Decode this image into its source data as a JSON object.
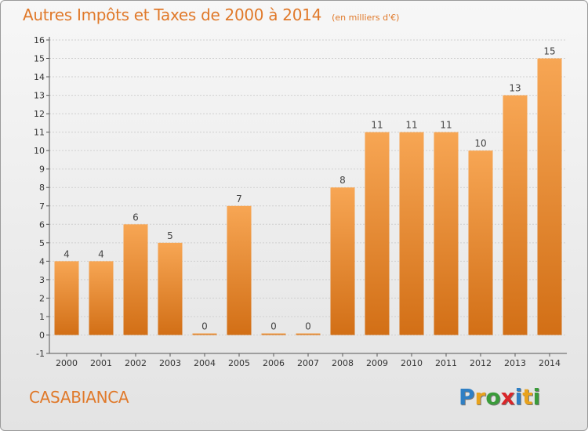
{
  "page": {
    "title": "Autres Impôts et Taxes de 2000 à 2014",
    "subtitle": "(en milliers d'€)",
    "commune": "CASABIANCA",
    "logo": {
      "text": "Proxiti",
      "letters": [
        {
          "char": "P",
          "color": "#2f7fc4"
        },
        {
          "char": "r",
          "color": "#e8a21c"
        },
        {
          "char": "o",
          "color": "#3a9b3a"
        },
        {
          "char": "x",
          "color": "#d9262a"
        },
        {
          "char": "i",
          "color": "#2f7fc4"
        },
        {
          "char": "t",
          "color": "#e8a21c"
        },
        {
          "char": "i",
          "color": "#3a9b3a"
        }
      ]
    }
  },
  "colors": {
    "bar_top": "#f7a654",
    "bar_bottom": "#d26f16",
    "title": "#e0792a",
    "grid": "#d0d0d0",
    "axis": "#555555"
  },
  "chart_data": {
    "type": "bar",
    "title": "Autres Impôts et Taxes de 2000 à 2014",
    "subtitle": "(en milliers d'€)",
    "categories": [
      "2000",
      "2001",
      "2002",
      "2003",
      "2004",
      "2005",
      "2006",
      "2007",
      "2008",
      "2009",
      "2010",
      "2011",
      "2012",
      "2013",
      "2014"
    ],
    "values": [
      4,
      4,
      6,
      5,
      0,
      7,
      0,
      0,
      8,
      11,
      11,
      11,
      10,
      13,
      15
    ],
    "data_labels": [
      "4",
      "4",
      "6",
      "5",
      "0",
      "7",
      "0",
      "0",
      "8",
      "11",
      "11",
      "11",
      "10",
      "13",
      "15"
    ],
    "ylim": [
      -1,
      16
    ],
    "yticks": [
      "-1",
      "0",
      "1",
      "2",
      "3",
      "4",
      "5",
      "6",
      "7",
      "8",
      "9",
      "10",
      "11",
      "12",
      "13",
      "14",
      "15",
      "16"
    ],
    "grid": true,
    "xlabel": "",
    "ylabel": ""
  }
}
